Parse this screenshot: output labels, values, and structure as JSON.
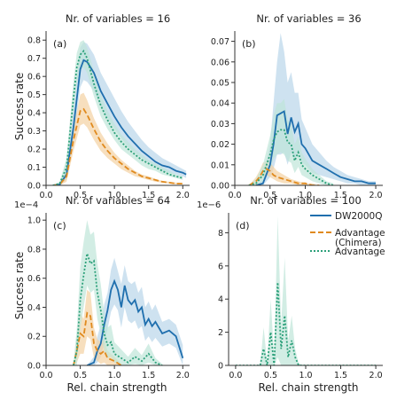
{
  "colors": {
    "dw2000q": "#1f6fae",
    "dw2000q_band": "#b9d6ea",
    "chimera": "#e08a1e",
    "chimera_band": "#f3d1a2",
    "advantage": "#2ca07a",
    "advantage_band": "#bfe6d8",
    "axis": "#333333"
  },
  "figure": {
    "ylabel": "Success rate",
    "xlabel": "Rel. chain strength",
    "xticks": [
      "0.0",
      "0.5",
      "1.0",
      "1.5",
      "2.0"
    ]
  },
  "legend": {
    "position": "upper-right of panel (d)",
    "entries": [
      {
        "label": "DW2000Q",
        "style": "solid",
        "color_key": "dw2000q"
      },
      {
        "label": "Advantage\n(Chimera)",
        "style": "dashed",
        "color_key": "chimera"
      },
      {
        "label": "Advantage",
        "style": "dotted",
        "color_key": "advantage"
      }
    ]
  },
  "chart_data": [
    {
      "type": "line",
      "panel_label": "(a)",
      "title": "Nr. of variables = 16",
      "xlim": [
        0,
        2.1
      ],
      "ylim": [
        0,
        0.85
      ],
      "yticks": [
        "0.0",
        "0.1",
        "0.2",
        "0.3",
        "0.4",
        "0.5",
        "0.6",
        "0.7",
        "0.8"
      ],
      "ytick_values": [
        0,
        0.1,
        0.2,
        0.3,
        0.4,
        0.5,
        0.6,
        0.7,
        0.8
      ],
      "sci": "",
      "series": [
        {
          "name": "DW2000Q",
          "style": "solid",
          "x": [
            0.1,
            0.2,
            0.3,
            0.4,
            0.5,
            0.55,
            0.6,
            0.7,
            0.8,
            0.9,
            1.0,
            1.1,
            1.2,
            1.3,
            1.4,
            1.5,
            1.6,
            1.7,
            1.8,
            1.9,
            2.0,
            2.05
          ],
          "y": [
            0.0,
            0.005,
            0.06,
            0.32,
            0.64,
            0.69,
            0.68,
            0.62,
            0.52,
            0.45,
            0.38,
            0.32,
            0.27,
            0.23,
            0.19,
            0.16,
            0.13,
            0.11,
            0.1,
            0.08,
            0.07,
            0.06
          ],
          "band": [
            0.0,
            0.01,
            0.1,
            0.42,
            0.76,
            0.79,
            0.78,
            0.72,
            0.62,
            0.55,
            0.48,
            0.41,
            0.35,
            0.3,
            0.25,
            0.21,
            0.18,
            0.15,
            0.13,
            0.11,
            0.09,
            0.08
          ],
          "band_low": [
            0.0,
            0.0,
            0.03,
            0.24,
            0.54,
            0.58,
            0.57,
            0.52,
            0.43,
            0.37,
            0.31,
            0.26,
            0.21,
            0.18,
            0.15,
            0.12,
            0.1,
            0.08,
            0.07,
            0.06,
            0.05,
            0.04
          ]
        },
        {
          "name": "Advantage (Chimera)",
          "style": "dashed",
          "x": [
            0.1,
            0.2,
            0.3,
            0.4,
            0.5,
            0.55,
            0.6,
            0.7,
            0.8,
            0.9,
            1.0,
            1.1,
            1.2,
            1.3,
            1.4,
            1.5,
            1.6,
            1.7,
            1.8,
            1.9,
            2.0
          ],
          "y": [
            0.0,
            0.005,
            0.05,
            0.25,
            0.41,
            0.42,
            0.39,
            0.31,
            0.24,
            0.19,
            0.15,
            0.12,
            0.09,
            0.07,
            0.05,
            0.04,
            0.03,
            0.02,
            0.015,
            0.01,
            0.01
          ],
          "band": [
            0.0,
            0.01,
            0.08,
            0.31,
            0.5,
            0.51,
            0.47,
            0.37,
            0.29,
            0.23,
            0.18,
            0.14,
            0.11,
            0.08,
            0.06,
            0.05,
            0.035,
            0.025,
            0.02,
            0.015,
            0.01
          ],
          "band_low": [
            0.0,
            0.0,
            0.02,
            0.19,
            0.33,
            0.34,
            0.32,
            0.25,
            0.19,
            0.15,
            0.12,
            0.09,
            0.07,
            0.05,
            0.04,
            0.03,
            0.02,
            0.015,
            0.01,
            0.005,
            0.005
          ]
        },
        {
          "name": "Advantage",
          "style": "dotted",
          "x": [
            0.1,
            0.2,
            0.3,
            0.4,
            0.45,
            0.5,
            0.55,
            0.6,
            0.7,
            0.8,
            0.9,
            1.0,
            1.1,
            1.2,
            1.3,
            1.4,
            1.5,
            1.6,
            1.7,
            1.8,
            1.9,
            2.0
          ],
          "y": [
            0.0,
            0.01,
            0.1,
            0.48,
            0.65,
            0.72,
            0.74,
            0.7,
            0.56,
            0.44,
            0.36,
            0.29,
            0.24,
            0.2,
            0.17,
            0.14,
            0.12,
            0.1,
            0.08,
            0.06,
            0.05,
            0.04
          ],
          "band": [
            0.0,
            0.02,
            0.15,
            0.57,
            0.73,
            0.79,
            0.8,
            0.76,
            0.63,
            0.5,
            0.41,
            0.34,
            0.28,
            0.24,
            0.2,
            0.17,
            0.14,
            0.12,
            0.1,
            0.08,
            0.06,
            0.05
          ],
          "band_low": [
            0.0,
            0.0,
            0.05,
            0.39,
            0.56,
            0.63,
            0.65,
            0.62,
            0.49,
            0.38,
            0.31,
            0.25,
            0.2,
            0.17,
            0.14,
            0.11,
            0.09,
            0.08,
            0.06,
            0.05,
            0.04,
            0.03
          ]
        }
      ]
    },
    {
      "type": "line",
      "panel_label": "(b)",
      "title": "Nr. of variables = 36",
      "xlim": [
        0,
        2.1
      ],
      "ylim": [
        0,
        0.075
      ],
      "yticks": [
        "0.00",
        "0.01",
        "0.02",
        "0.03",
        "0.04",
        "0.05",
        "0.06",
        "0.07"
      ],
      "ytick_values": [
        0,
        0.01,
        0.02,
        0.03,
        0.04,
        0.05,
        0.06,
        0.07
      ],
      "sci": "",
      "series": [
        {
          "name": "DW2000Q",
          "style": "solid",
          "x": [
            0.3,
            0.4,
            0.5,
            0.55,
            0.6,
            0.65,
            0.7,
            0.75,
            0.8,
            0.85,
            0.9,
            0.95,
            1.0,
            1.1,
            1.2,
            1.3,
            1.4,
            1.5,
            1.6,
            1.7,
            1.8,
            1.9,
            2.0
          ],
          "y": [
            0.0,
            0.001,
            0.01,
            0.02,
            0.034,
            0.035,
            0.036,
            0.025,
            0.033,
            0.026,
            0.03,
            0.02,
            0.018,
            0.012,
            0.01,
            0.008,
            0.006,
            0.004,
            0.003,
            0.002,
            0.002,
            0.001,
            0.001
          ],
          "band": [
            0.0,
            0.003,
            0.02,
            0.04,
            0.06,
            0.074,
            0.065,
            0.05,
            0.055,
            0.045,
            0.045,
            0.032,
            0.028,
            0.02,
            0.016,
            0.012,
            0.009,
            0.007,
            0.005,
            0.004,
            0.003,
            0.002,
            0.002
          ],
          "band_low": [
            0.0,
            0.0,
            0.004,
            0.008,
            0.015,
            0.015,
            0.016,
            0.01,
            0.016,
            0.012,
            0.017,
            0.011,
            0.01,
            0.006,
            0.005,
            0.004,
            0.003,
            0.002,
            0.001,
            0.001,
            0.0,
            0.0,
            0.0
          ]
        },
        {
          "name": "Advantage (Chimera)",
          "style": "dashed",
          "x": [
            0.2,
            0.3,
            0.35,
            0.4,
            0.45,
            0.5,
            0.55,
            0.6,
            0.7,
            0.8,
            0.9,
            1.0,
            1.1,
            1.2
          ],
          "y": [
            0.0,
            0.002,
            0.004,
            0.007,
            0.008,
            0.007,
            0.005,
            0.004,
            0.003,
            0.002,
            0.001,
            0.001,
            0.0,
            0.0
          ],
          "band": [
            0.0,
            0.004,
            0.007,
            0.011,
            0.012,
            0.011,
            0.009,
            0.007,
            0.005,
            0.003,
            0.002,
            0.001,
            0.001,
            0.0
          ],
          "band_low": [
            0.0,
            0.0,
            0.002,
            0.004,
            0.005,
            0.004,
            0.003,
            0.002,
            0.001,
            0.001,
            0.0,
            0.0,
            0.0,
            0.0
          ]
        },
        {
          "name": "Advantage",
          "style": "dotted",
          "x": [
            0.2,
            0.3,
            0.4,
            0.5,
            0.55,
            0.6,
            0.65,
            0.7,
            0.75,
            0.8,
            0.85,
            0.9,
            0.95,
            1.0,
            1.1,
            1.2,
            1.3,
            1.4
          ],
          "y": [
            0.0,
            0.001,
            0.005,
            0.015,
            0.022,
            0.026,
            0.027,
            0.027,
            0.021,
            0.02,
            0.012,
            0.016,
            0.01,
            0.008,
            0.005,
            0.003,
            0.001,
            0.0
          ],
          "band": [
            0.0,
            0.003,
            0.01,
            0.024,
            0.034,
            0.04,
            0.04,
            0.042,
            0.032,
            0.03,
            0.02,
            0.024,
            0.016,
            0.013,
            0.008,
            0.005,
            0.002,
            0.001
          ],
          "band_low": [
            0.0,
            0.0,
            0.002,
            0.008,
            0.013,
            0.015,
            0.016,
            0.015,
            0.012,
            0.011,
            0.006,
            0.009,
            0.005,
            0.004,
            0.002,
            0.001,
            0.0,
            0.0
          ]
        }
      ]
    },
    {
      "type": "line",
      "panel_label": "(c)",
      "title": "Nr. of variables = 64",
      "xlim": [
        0,
        2.1
      ],
      "ylim": [
        0,
        1.05
      ],
      "yticks": [
        "0.0",
        "0.2",
        "0.4",
        "0.6",
        "0.8",
        "1.0"
      ],
      "ytick_values": [
        0,
        0.2,
        0.4,
        0.6,
        0.8,
        1.0
      ],
      "sci": "1e−4",
      "series": [
        {
          "name": "DW2000Q",
          "style": "solid",
          "x": [
            0.6,
            0.7,
            0.75,
            0.8,
            0.85,
            0.9,
            0.95,
            1.0,
            1.05,
            1.1,
            1.15,
            1.2,
            1.25,
            1.3,
            1.35,
            1.4,
            1.45,
            1.5,
            1.55,
            1.6,
            1.7,
            1.8,
            1.9,
            2.0
          ],
          "y": [
            0.0,
            0.02,
            0.1,
            0.15,
            0.28,
            0.38,
            0.52,
            0.58,
            0.52,
            0.4,
            0.55,
            0.45,
            0.42,
            0.45,
            0.37,
            0.4,
            0.28,
            0.32,
            0.27,
            0.3,
            0.22,
            0.24,
            0.2,
            0.05
          ],
          "band": [
            0.0,
            0.06,
            0.2,
            0.28,
            0.42,
            0.5,
            0.66,
            0.74,
            0.65,
            0.56,
            0.69,
            0.58,
            0.56,
            0.58,
            0.5,
            0.54,
            0.4,
            0.44,
            0.38,
            0.42,
            0.3,
            0.32,
            0.28,
            0.14
          ],
          "band_low": [
            0.0,
            0.0,
            0.02,
            0.06,
            0.15,
            0.25,
            0.37,
            0.42,
            0.38,
            0.26,
            0.4,
            0.31,
            0.29,
            0.31,
            0.25,
            0.27,
            0.17,
            0.2,
            0.16,
            0.19,
            0.13,
            0.15,
            0.12,
            0.0
          ]
        },
        {
          "name": "Advantage (Chimera)",
          "style": "dashed",
          "x": [
            0.4,
            0.45,
            0.5,
            0.55,
            0.6,
            0.65,
            0.7,
            0.75,
            0.8,
            0.85,
            0.9,
            1.0,
            1.1
          ],
          "y": [
            0.0,
            0.1,
            0.22,
            0.2,
            0.36,
            0.34,
            0.15,
            0.1,
            0.08,
            0.1,
            0.05,
            0.03,
            0.0
          ],
          "band": [
            0.0,
            0.2,
            0.36,
            0.32,
            0.52,
            0.5,
            0.26,
            0.18,
            0.16,
            0.18,
            0.1,
            0.06,
            0.01
          ],
          "band_low": [
            0.0,
            0.02,
            0.08,
            0.08,
            0.2,
            0.18,
            0.05,
            0.03,
            0.01,
            0.02,
            0.0,
            0.0,
            0.0
          ]
        },
        {
          "name": "Advantage",
          "style": "dotted",
          "x": [
            0.4,
            0.45,
            0.5,
            0.55,
            0.6,
            0.65,
            0.7,
            0.75,
            0.8,
            0.85,
            0.9,
            0.95,
            1.0,
            1.1,
            1.2,
            1.3,
            1.4,
            1.5,
            1.6,
            1.7
          ],
          "y": [
            0.0,
            0.1,
            0.45,
            0.62,
            0.77,
            0.7,
            0.72,
            0.5,
            0.38,
            0.22,
            0.14,
            0.16,
            0.08,
            0.05,
            0.02,
            0.06,
            0.03,
            0.08,
            0.02,
            0.0
          ],
          "band": [
            0.02,
            0.25,
            0.68,
            0.85,
            1.0,
            0.9,
            0.92,
            0.7,
            0.56,
            0.36,
            0.26,
            0.28,
            0.16,
            0.11,
            0.06,
            0.12,
            0.07,
            0.15,
            0.05,
            0.01
          ],
          "band_low": [
            0.0,
            0.0,
            0.25,
            0.4,
            0.55,
            0.5,
            0.52,
            0.32,
            0.22,
            0.1,
            0.05,
            0.06,
            0.02,
            0.0,
            0.0,
            0.01,
            0.0,
            0.02,
            0.0,
            0.0
          ]
        }
      ]
    },
    {
      "type": "line",
      "panel_label": "(d)",
      "title": "Nr. of variables = 100",
      "xlim": [
        -0.1,
        2.1
      ],
      "ylim": [
        0,
        9.2
      ],
      "yticks": [
        "0",
        "2",
        "4",
        "6",
        "8"
      ],
      "ytick_values": [
        0,
        2,
        4,
        6,
        8
      ],
      "sci": "1e−6",
      "series": [
        {
          "name": "Advantage",
          "style": "dotted",
          "x": [
            0.0,
            0.35,
            0.4,
            0.45,
            0.5,
            0.55,
            0.6,
            0.65,
            0.7,
            0.75,
            0.8,
            0.85,
            0.9,
            1.0,
            2.0
          ],
          "y": [
            0.0,
            0.0,
            1.0,
            0.0,
            2.0,
            0.0,
            5.0,
            1.0,
            3.0,
            0.5,
            1.5,
            0.5,
            0.0,
            0.0,
            0.0
          ],
          "band": [
            0.0,
            0.0,
            2.3,
            0.2,
            4.0,
            0.5,
            9.0,
            2.5,
            6.5,
            1.5,
            3.0,
            1.0,
            0.1,
            0.0,
            0.0
          ],
          "band_low": [
            0.0,
            0.0,
            0.0,
            0.0,
            0.0,
            0.0,
            0.5,
            0.0,
            0.0,
            0.0,
            0.0,
            0.0,
            0.0,
            0.0,
            0.0
          ]
        }
      ]
    }
  ]
}
